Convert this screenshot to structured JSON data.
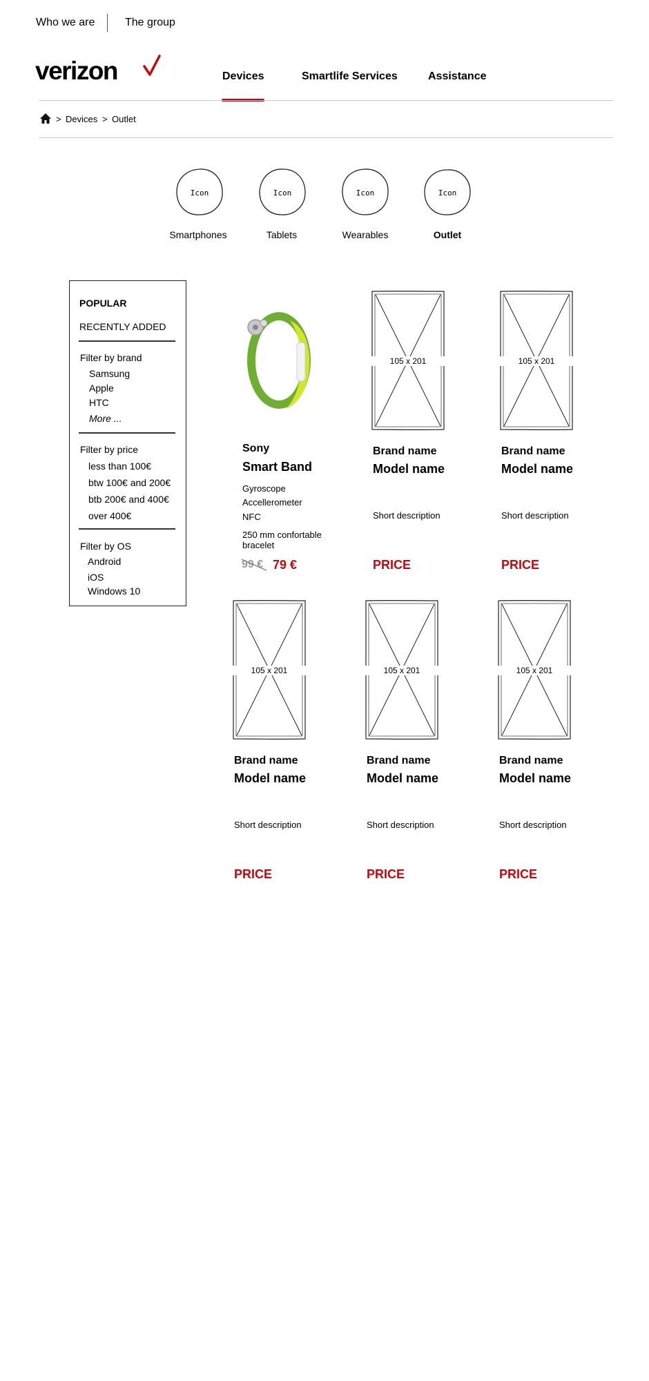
{
  "top_links": {
    "who_we_are": "Who we are",
    "the_group": "The group"
  },
  "logo": {
    "text": "verizon",
    "accent_color": "#cd040b"
  },
  "nav": {
    "devices": "Devices",
    "smartlife": "Smartlife Services",
    "assistance": "Assistance"
  },
  "breadcrumb": {
    "sep1": ">",
    "devices": "Devices",
    "sep2": ">",
    "outlet": "Outlet"
  },
  "categories": [
    {
      "icon": "Icon",
      "label": "Smartphones"
    },
    {
      "icon": "Icon",
      "label": "Tablets"
    },
    {
      "icon": "Icon",
      "label": "Wearables"
    },
    {
      "icon": "Icon",
      "label": "Outlet"
    }
  ],
  "filters": {
    "popular": "POPULAR",
    "recently_added": "RECENTLY ADDED",
    "brand_title": "Filter by brand",
    "brands": [
      "Samsung",
      "Apple",
      "HTC"
    ],
    "brand_more": "More ...",
    "price_title": "Filter by price",
    "prices": [
      "less than 100€",
      "btw 100€ and 200€",
      "btb 200€ and 400€",
      "over 400€"
    ],
    "os_title": "Filter by OS",
    "os": [
      "Android",
      "iOS",
      "Windows 10"
    ]
  },
  "featured": {
    "brand": "Sony",
    "model": "Smart Band",
    "specs": [
      "Gyroscope",
      "Accellerometer",
      "NFC",
      "250 mm confortable bracelet"
    ],
    "old_price": "99 €",
    "price": "79 €"
  },
  "placeholder_product": {
    "image_label": "105 x 201",
    "brand": "Brand name",
    "model": "Model name",
    "description": "Short description",
    "price": "PRICE"
  }
}
